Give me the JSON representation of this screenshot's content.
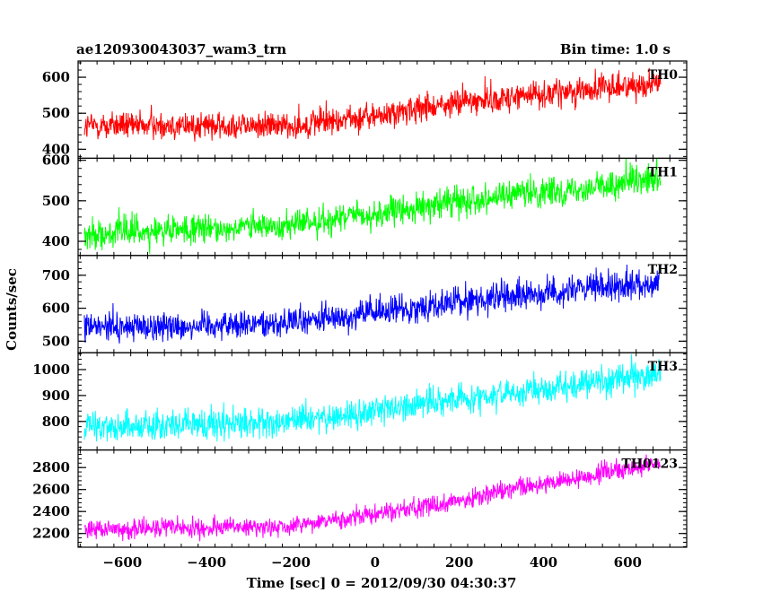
{
  "chart_data": {
    "type": "line",
    "title_left": "ae120930043037_wam3_trn",
    "title_right": "Bin time: 1.0 s",
    "xlabel": "Time [sec] 0 = 2012/09/30 04:30:37",
    "ylabel": "Counts/sec",
    "xlim": [
      -705,
      740
    ],
    "x_ticks": [
      -600,
      -400,
      -200,
      0,
      200,
      400,
      600
    ],
    "x_tick_labels": [
      "−600",
      "−400",
      "−200",
      "0",
      "200",
      "400",
      "600"
    ],
    "x_range": [
      -690,
      678
    ],
    "grid": false,
    "panels": [
      {
        "name": "TH0",
        "color": "#ff0000",
        "ylim": [
          375,
          645
        ],
        "y_ticks": [
          400,
          500,
          600
        ],
        "y_tick_labels": [
          "400",
          "500",
          "600"
        ],
        "trend_x": [
          -690,
          -200,
          0,
          200,
          678
        ],
        "trend_y": [
          465,
          465,
          490,
          530,
          585
        ],
        "noise": 35
      },
      {
        "name": "TH1",
        "color": "#00ff00",
        "ylim": [
          365,
          605
        ],
        "y_ticks": [
          400,
          500,
          600
        ],
        "y_tick_labels": [
          "400",
          "500",
          "600"
        ],
        "trend_x": [
          -690,
          -200,
          0,
          200,
          678
        ],
        "trend_y": [
          415,
          440,
          465,
          500,
          550
        ],
        "noise": 32
      },
      {
        "name": "TH2",
        "color": "#0000ff",
        "ylim": [
          465,
          760
        ],
        "y_ticks": [
          500,
          600,
          700
        ],
        "y_tick_labels": [
          "500",
          "600",
          "700"
        ],
        "trend_x": [
          -690,
          -200,
          0,
          200,
          678
        ],
        "trend_y": [
          540,
          555,
          585,
          620,
          680
        ],
        "noise": 40
      },
      {
        "name": "TH3",
        "color": "#00ffff",
        "ylim": [
          690,
          1065
        ],
        "y_ticks": [
          800,
          900,
          1000
        ],
        "y_tick_labels": [
          "800",
          "900",
          "1000"
        ],
        "trend_x": [
          -690,
          -200,
          0,
          200,
          678
        ],
        "trend_y": [
          780,
          795,
          840,
          885,
          985
        ],
        "noise": 52
      },
      {
        "name": "TH0123",
        "color": "#ff00ff",
        "ylim": [
          2075,
          2960
        ],
        "y_ticks": [
          2200,
          2400,
          2600,
          2800
        ],
        "y_tick_labels": [
          "2200",
          "2400",
          "2600",
          "2800"
        ],
        "trend_x": [
          -690,
          -200,
          0,
          200,
          678
        ],
        "trend_y": [
          2240,
          2260,
          2370,
          2500,
          2850
        ],
        "noise": 80
      }
    ]
  }
}
